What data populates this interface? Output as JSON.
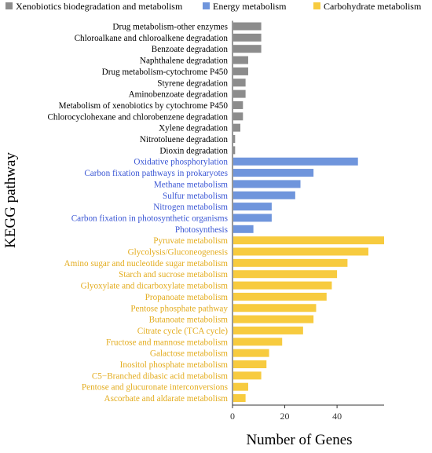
{
  "chart_data": {
    "type": "bar",
    "orientation": "horizontal",
    "title": "",
    "xlabel": "Number of Genes",
    "ylabel": "KEGG pathway",
    "xlim": [
      0,
      58
    ],
    "xticks": [
      0,
      20,
      40
    ],
    "grid": false,
    "legend_position": "top",
    "series": [
      {
        "name": "Xenobiotics biodegradation and metabolism",
        "color": "#8c8c8c",
        "categories": [
          "Drug metabolism-other enzymes",
          "Chloroalkane and chloroalkene degradation",
          "Benzoate degradation",
          "Naphthalene degradation",
          "Drug metabolism-cytochrome P450",
          "Styrene degradation",
          "Aminobenzoate degradation",
          "Metabolism of xenobiotics by cytochrome P450",
          "Chlorocyclohexane and chlorobenzene degradation",
          "Xylene degradation",
          "Nitrotoluene degradation",
          "Dioxin degradation"
        ],
        "values": [
          11,
          11,
          11,
          6,
          6,
          5,
          5,
          4,
          4,
          3,
          1,
          1
        ]
      },
      {
        "name": "Energy metabolism",
        "color": "#6f95dc",
        "categories": [
          "Oxidative phosphorylation",
          "Carbon fixation pathways in prokaryotes",
          "Methane metabolism",
          "Sulfur metabolism",
          "Nitrogen metabolism",
          "Carbon fixation in photosynthetic organisms",
          "Photosynthesis"
        ],
        "values": [
          48,
          31,
          26,
          24,
          15,
          15,
          8
        ]
      },
      {
        "name": "Carbohydrate metabolism",
        "color": "#f7cb3f",
        "categories": [
          "Pyruvate metabolism",
          "Glycolysis/Gluconeogenesis",
          "Amino sugar and nucleotide sugar metabolism",
          "Starch and sucrose metabolism",
          "Glyoxylate and dicarboxylate metabolism",
          "Propanoate metabolism",
          "Pentose phosphate pathway",
          "Butanoate metabolism",
          "Citrate cycle (TCA cycle)",
          "Fructose and mannose metabolism",
          "Galactose metabolism",
          "Inositol phosphate metabolism",
          "C5−Branched dibasic acid metabolism",
          "Pentose and glucuronate interconversions",
          "Ascorbate and aldarate metabolism"
        ],
        "values": [
          58,
          52,
          44,
          40,
          38,
          36,
          32,
          31,
          27,
          19,
          14,
          13,
          11,
          6,
          5
        ]
      }
    ],
    "label_colors": {
      "Xenobiotics biodegradation and metabolism": "#000000",
      "Energy metabolism": "#3a56d4",
      "Carbohydrate metabolism": "#e3ac1e"
    },
    "axis_color": "#333333"
  }
}
